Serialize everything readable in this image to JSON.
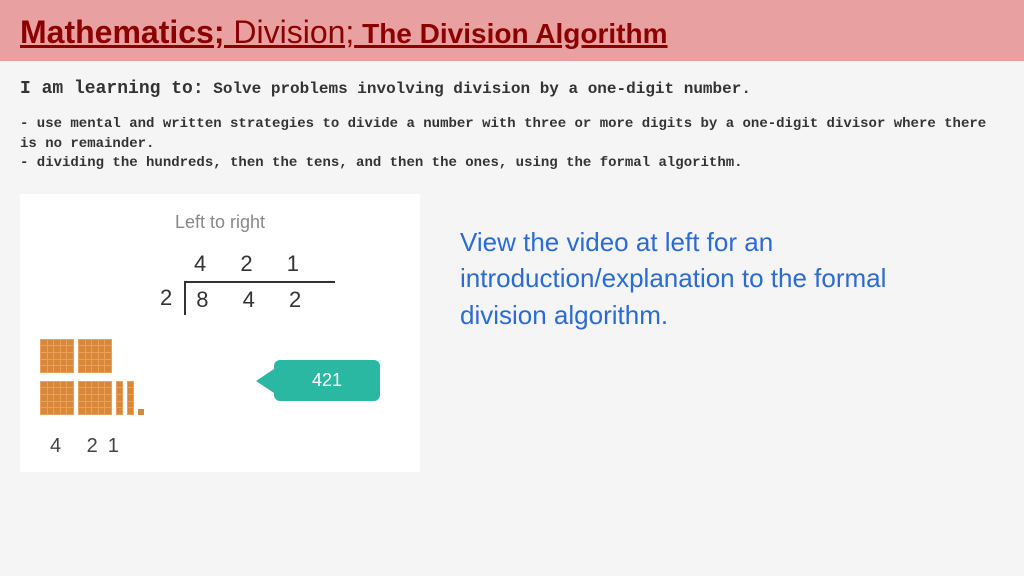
{
  "header": {
    "title_strong": "Mathematics;",
    "title_mid": " Division;",
    "title_tail": " The Division Algorithm",
    "band_color": "#e8a0a0",
    "title_color": "#8b0000"
  },
  "learning": {
    "label": "I am learning to:",
    "text": " Solve problems involving division by a one-digit number."
  },
  "bullets": {
    "line1": "- use mental and written strategies to divide a number with three or more digits by a one-digit divisor where there is no remainder.",
    "line2": "- dividing the hundreds, then the tens, and then the ones, using the formal algorithm."
  },
  "video": {
    "heading": "Left to right",
    "quotient": "4 2 1",
    "divisor": "2",
    "dividend": "8 4 2",
    "badge_value": "421",
    "badge_color": "#2bb8a3",
    "small_result": "4 21"
  },
  "instruction": {
    "text": "View the video at left for an introduction/explanation to the formal division algorithm.",
    "color": "#2b6bd4"
  }
}
